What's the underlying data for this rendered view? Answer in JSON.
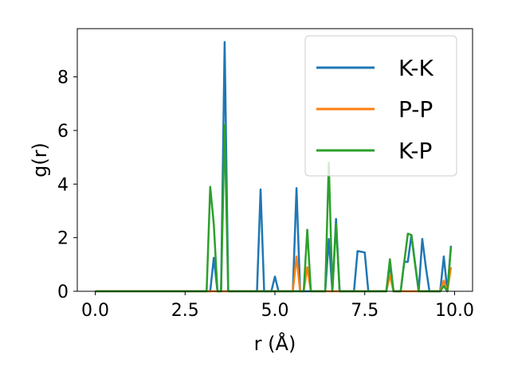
{
  "chart_data": {
    "type": "line",
    "title": "",
    "xlabel": "r (Å)",
    "ylabel": "g(r)",
    "xlim": [
      -0.5,
      10.5
    ],
    "ylim": [
      0,
      9.8
    ],
    "xticks": [
      0.0,
      2.5,
      5.0,
      7.5,
      10.0
    ],
    "xtick_labels": [
      "0.0",
      "2.5",
      "5.0",
      "7.5",
      "10.0"
    ],
    "yticks": [
      0,
      2,
      4,
      6,
      8
    ],
    "ytick_labels": [
      "0",
      "2",
      "4",
      "6",
      "8"
    ],
    "grid": false,
    "legend_position": "top-right",
    "series": [
      {
        "name": "K-K",
        "color": "#1f77b4",
        "x": [
          0.0,
          3.2,
          3.3,
          3.4,
          3.5,
          3.6,
          3.7,
          4.5,
          4.6,
          4.7,
          4.9,
          5.0,
          5.1,
          5.5,
          5.6,
          5.7,
          5.8,
          5.9,
          6.0,
          6.4,
          6.5,
          6.6,
          6.7,
          6.8,
          7.2,
          7.3,
          7.5,
          7.6,
          8.1,
          8.2,
          8.3,
          8.5,
          8.6,
          8.7,
          8.8,
          9.0,
          9.1,
          9.2,
          9.3,
          9.6,
          9.7,
          9.8,
          9.9
        ],
        "values": [
          0,
          0,
          1.25,
          0,
          0,
          9.3,
          0,
          0,
          3.8,
          0,
          0,
          0.55,
          0,
          0,
          3.85,
          0,
          0,
          0,
          0,
          0,
          1.95,
          0,
          2.7,
          0,
          0,
          1.5,
          1.45,
          0,
          0,
          1.0,
          0,
          0,
          1.1,
          1.1,
          2.1,
          0,
          1.95,
          0.9,
          0,
          0,
          1.3,
          0,
          1.7
        ]
      },
      {
        "name": "P-P",
        "color": "#ff7f0e",
        "x": [
          0.0,
          5.5,
          5.6,
          5.7,
          5.8,
          5.9,
          6.0,
          8.1,
          8.2,
          8.3,
          9.6,
          9.7,
          9.8,
          9.9
        ],
        "values": [
          0,
          0,
          1.3,
          0,
          0,
          0.9,
          0,
          0,
          0.6,
          0,
          0,
          0.4,
          0,
          0.9
        ]
      },
      {
        "name": "K-P",
        "color": "#2ca02c",
        "x": [
          0.0,
          3.1,
          3.2,
          3.3,
          3.4,
          3.5,
          3.6,
          3.7,
          5.8,
          5.9,
          6.0,
          6.4,
          6.5,
          6.6,
          6.7,
          6.8,
          8.1,
          8.2,
          8.3,
          8.5,
          8.6,
          8.7,
          8.8,
          8.9,
          9.0,
          9.1,
          9.6,
          9.7,
          9.8,
          9.9
        ],
        "values": [
          0,
          0,
          3.9,
          2.5,
          0,
          0,
          6.2,
          0,
          0,
          2.3,
          0,
          0,
          4.8,
          0,
          2.5,
          0,
          0,
          1.2,
          0,
          0,
          1.1,
          2.15,
          2.1,
          1.0,
          0,
          0,
          0,
          0.2,
          0,
          1.65
        ]
      }
    ]
  }
}
